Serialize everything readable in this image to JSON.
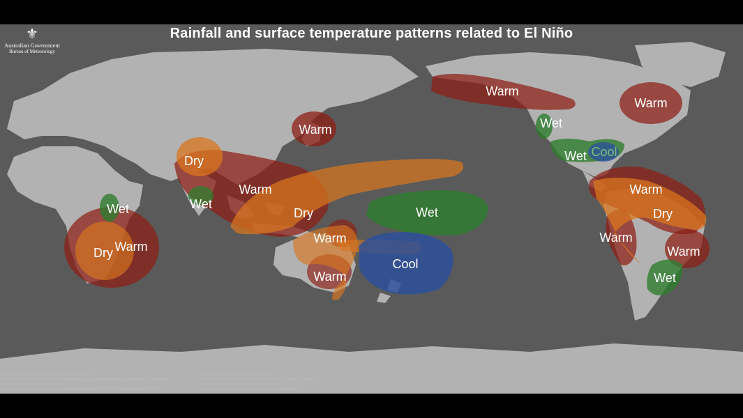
{
  "title": "Rainfall and surface temperature patterns related to El Niño",
  "logo": {
    "line1": "Australian Government",
    "line2": "Bureau of Meteorology"
  },
  "colors": {
    "warm": "#8e1f14",
    "dry": "#d9761e",
    "wet": "#2e7d2e",
    "cool": "#2b4f9e",
    "ocean": "#5a5a5a",
    "land": "#b4b4b4"
  },
  "regions": {
    "north_pacific_warm": "Warm",
    "east_na_warm": "Warm",
    "japan_warm": "Warm",
    "us_wet": "Wet",
    "gulf_wet": "Wet",
    "gulf_cool": "Cool",
    "nsa_warm": "Warm",
    "nsa_dry": "Dry",
    "peru_warm": "Warm",
    "brazil_warm": "Warm",
    "argentina_wet": "Wet",
    "pacific_wet": "Wet",
    "nz_cool": "Cool",
    "indo_warm": "Warm",
    "indo_dry": "Dry",
    "india_dry": "Dry",
    "india_wet": "Wet",
    "aus_warm_n": "Warm",
    "aus_warm_s": "Warm",
    "africa_wet": "Wet",
    "africa_dry": "Dry",
    "africa_warm": "Warm"
  },
  "references": {
    "left": [
      "Monthly Weather Review, Volume 115 (August 1987)",
      "Global and Regional Scale Precipitation Patterns Associated with the El Niño/Southern Oscillation",
      "C. F. Ropelewski and M. S. Halpert",
      "Climate Analysis Center/National Meteorological Center, NWS/NOAA, Washington, DC 20233"
    ],
    "right": [
      "Journal of Climate, Volume 5 (June 1992)",
      "Surface temperature Patterns Associated with the Southern Oscillation",
      "Michael S. Halpert and Chester F. Ropelewski",
      "Climate Analysis Center, NMC/NWS/NOAA, Washington, DC"
    ]
  }
}
